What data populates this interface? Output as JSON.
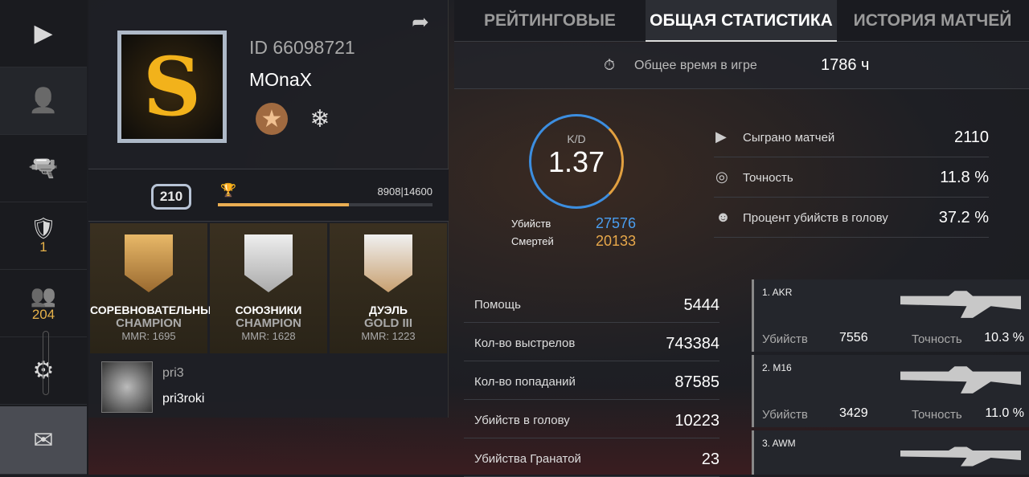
{
  "nav": {
    "items": [
      {
        "icon": "play-icon",
        "glyph": "▶"
      },
      {
        "icon": "user-icon",
        "glyph": "👤"
      },
      {
        "icon": "pistol-icon",
        "glyph": "🔫"
      },
      {
        "icon": "rank-badge-icon",
        "glyph": "🛡",
        "count": "1"
      },
      {
        "icon": "friends-icon",
        "glyph": "👥",
        "count": "204"
      },
      {
        "icon": "gear-icon",
        "glyph": "⚙"
      },
      {
        "icon": "mail-icon",
        "glyph": "✉"
      }
    ]
  },
  "profile": {
    "id": "ID 66098721",
    "name": "MOnaX",
    "avatar_letter": "S",
    "level": "210",
    "xp": "8908|14600",
    "xp_progress": 0.61
  },
  "ranks": [
    {
      "mode": "СОРЕВНОВАТЕЛЬНЫЙ",
      "rank": "CHAMPION",
      "mmr": "MMR: 1695"
    },
    {
      "mode": "СОЮЗНИКИ",
      "rank": "CHAMPION",
      "mmr": "MMR: 1628"
    },
    {
      "mode": "ДУЭЛЬ",
      "rank": "GOLD III",
      "mmr": "MMR: 1223"
    }
  ],
  "friend": {
    "name": "pri3",
    "nick": "pri3roki"
  },
  "tabs": [
    {
      "label": "РЕЙТИНГОВЫЕ"
    },
    {
      "label": "ОБЩАЯ СТАТИСТИКА"
    },
    {
      "label": "ИСТОРИЯ МАТЧЕЙ"
    }
  ],
  "time": {
    "label": "Общее время в игре",
    "value": "1786 ч"
  },
  "kd": {
    "label": "K/D",
    "value": "1.37",
    "kills_label": "Убийств",
    "kills": "27576",
    "deaths_label": "Смертей",
    "deaths": "20133",
    "kills_color": "#4a9ef0",
    "deaths_color": "#e8a84a"
  },
  "stats": [
    {
      "icon": "play-icon",
      "glyph": "▶",
      "label": "Сыграно матчей",
      "value": "2110"
    },
    {
      "icon": "target-icon",
      "glyph": "◎",
      "label": "Точность",
      "value": "11.8 %"
    },
    {
      "icon": "mask-icon",
      "glyph": "☻",
      "label": "Процент убийств в голову",
      "value": "37.2 %"
    }
  ],
  "table": [
    {
      "label": "Помощь",
      "value": "5444"
    },
    {
      "label": "Кол-во выстрелов",
      "value": "743384"
    },
    {
      "label": "Кол-во попаданий",
      "value": "87585"
    },
    {
      "label": "Убийств в голову",
      "value": "10223"
    },
    {
      "label": "Убийства Гранатой",
      "value": "23"
    }
  ],
  "weapons": [
    {
      "name": "1. AKR",
      "kills_label": "Убийств",
      "kills": "7556",
      "acc_label": "Точность",
      "acc": "10.3 %"
    },
    {
      "name": "2. M16",
      "kills_label": "Убийств",
      "kills": "3429",
      "acc_label": "Точность",
      "acc": "11.0 %"
    },
    {
      "name": "3. AWM"
    }
  ]
}
